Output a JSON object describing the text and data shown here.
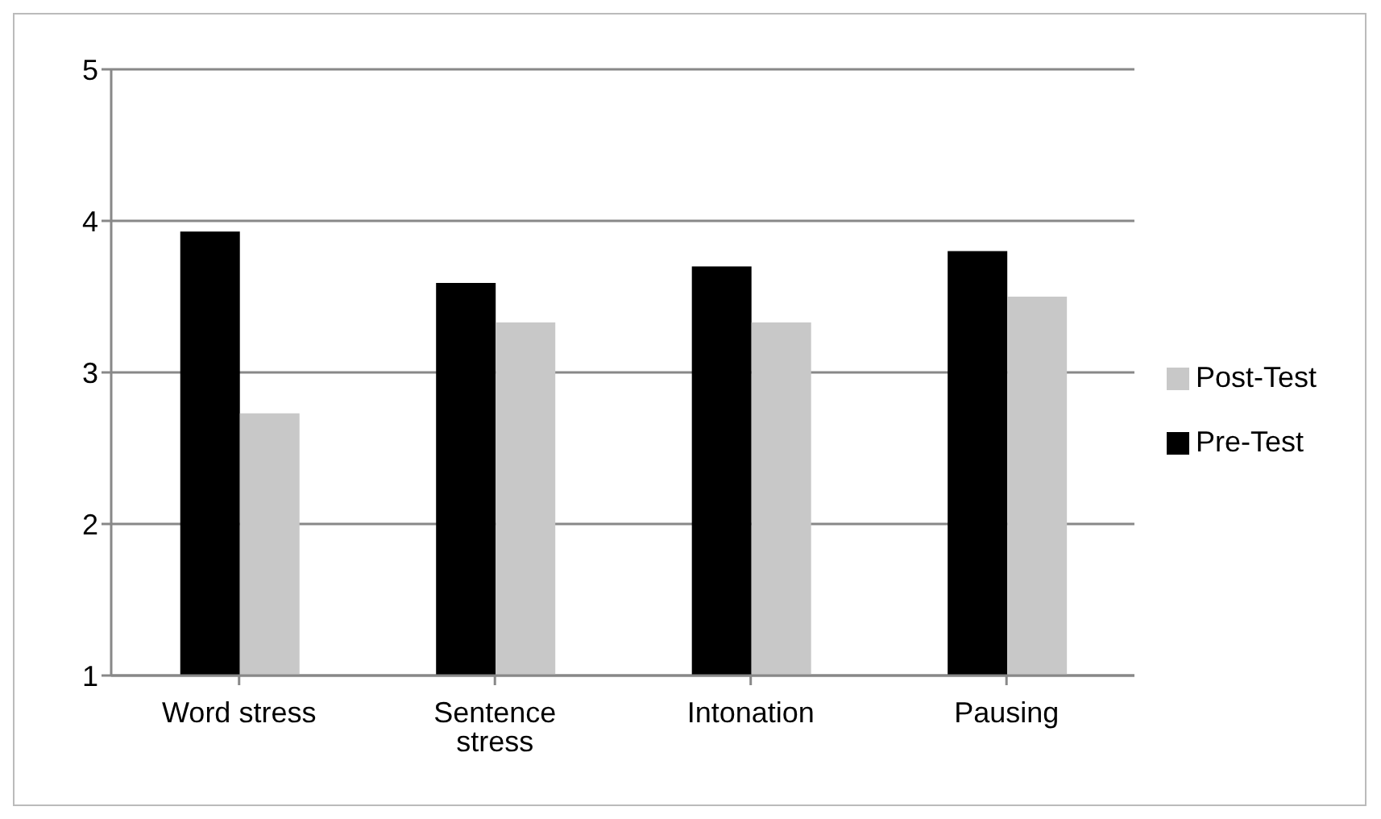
{
  "chart_data": {
    "type": "bar",
    "categories": [
      "Word stress",
      "Sentence stress",
      "Intonation",
      "Pausing"
    ],
    "series": [
      {
        "name": "Pre-Test",
        "color": "#000000",
        "values": [
          3.93,
          3.59,
          3.7,
          3.8
        ]
      },
      {
        "name": "Post-Test",
        "color": "#c8c8c8",
        "values": [
          2.73,
          3.33,
          3.33,
          3.5
        ]
      }
    ],
    "ylim": [
      1,
      5
    ],
    "yticks": [
      1,
      2,
      3,
      4,
      5
    ],
    "grid": "y",
    "legend": "right"
  }
}
